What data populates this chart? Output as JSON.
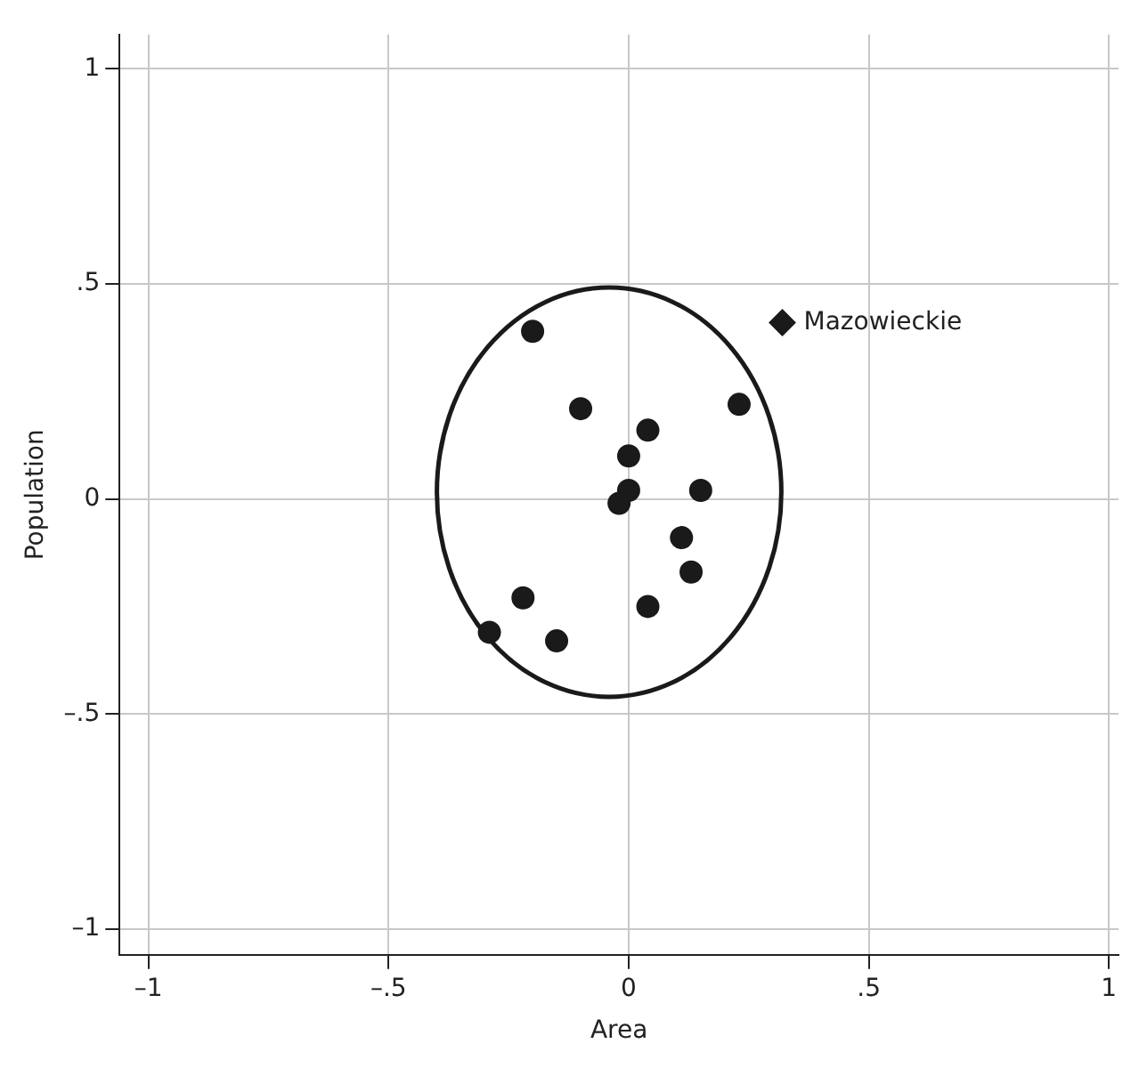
{
  "chart_data": {
    "type": "scatter",
    "xlabel": "Area",
    "ylabel": "Population",
    "xlim": [
      -1.06,
      1.02
    ],
    "ylim": [
      -1.06,
      1.08
    ],
    "xticks": [
      {
        "value": -1,
        "label": "–1"
      },
      {
        "value": -0.5,
        "label": "–.5"
      },
      0,
      {
        "value": 0.5,
        "label": ".5"
      },
      1
    ],
    "yticks": [
      {
        "value": -1,
        "label": "–1"
      },
      {
        "value": -0.5,
        "label": "–.5"
      },
      0,
      {
        "value": 0.5,
        "label": ".5"
      },
      1
    ],
    "grid": true,
    "legend": false,
    "series": [
      {
        "type": "scatter",
        "marker": "circle",
        "color": "#1a1a1a",
        "x": [
          -0.2,
          -0.1,
          0.04,
          0.0,
          0.23,
          0.0,
          -0.02,
          0.15,
          0.11,
          0.13,
          0.04,
          -0.22,
          -0.29,
          -0.15
        ],
        "values": [
          0.39,
          0.21,
          0.16,
          0.1,
          0.22,
          0.02,
          -0.01,
          0.02,
          -0.09,
          -0.17,
          -0.25,
          -0.23,
          -0.31,
          -0.33
        ]
      },
      {
        "type": "scatter",
        "marker": "diamond",
        "color": "#1a1a1a",
        "x": [
          0.32
        ],
        "values": [
          0.41
        ]
      }
    ],
    "annotations": [
      {
        "text": "Mazowieckie",
        "x": 0.32,
        "y": 0.41
      }
    ]
  }
}
